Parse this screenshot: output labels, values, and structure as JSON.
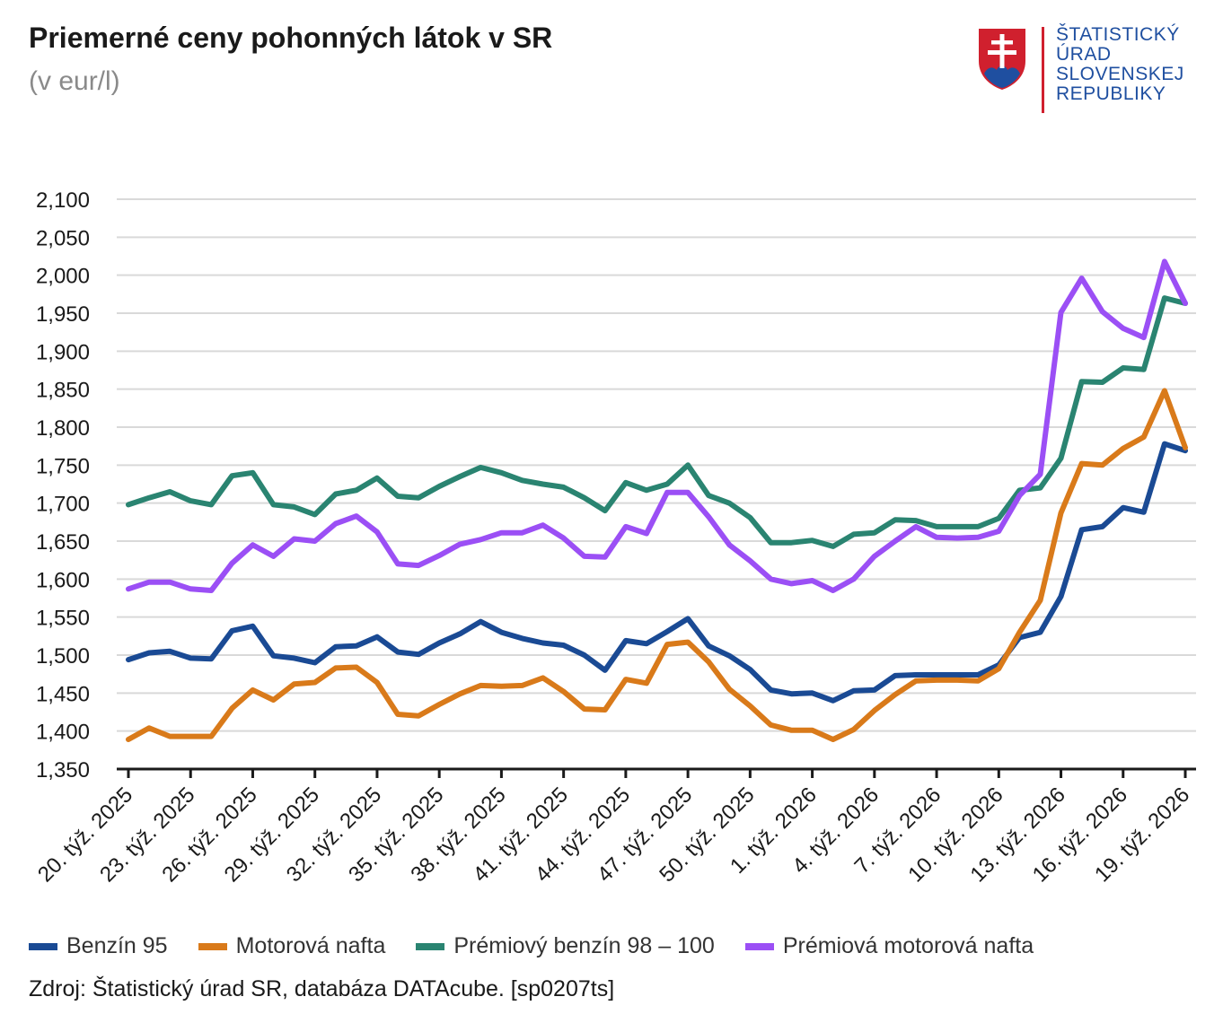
{
  "header": {
    "title": "Priemerné ceny pohonných látok v SR",
    "subtitle": "(v eur/l)"
  },
  "logo": {
    "text": "ŠTATISTICKÝ\nÚRAD\nSLOVENSKEJ\nREPUBLIKY",
    "icon": "slovak-coat-of-arms-icon"
  },
  "source": "Zdroj: Štatistický úrad SR, databáza DATAcube. [sp0207ts]",
  "chart_data": {
    "type": "line",
    "title": "Priemerné ceny pohonných látok v SR",
    "subtitle": "(v eur/l)",
    "xlabel": "",
    "ylabel": "",
    "ylim": [
      1.35,
      2.1
    ],
    "ytick_step": 0.05,
    "yticks": [
      "1,350",
      "1,400",
      "1,450",
      "1,500",
      "1,550",
      "1,600",
      "1,650",
      "1,700",
      "1,750",
      "1,800",
      "1,850",
      "1,900",
      "1,950",
      "2,000",
      "2,050",
      "2,100"
    ],
    "grid": true,
    "legend_position": "bottom",
    "categories": [
      "20. týž. 2025",
      "21. týž. 2025",
      "22. týž. 2025",
      "23. týž. 2025",
      "24. týž. 2025",
      "25. týž. 2025",
      "26. týž. 2025",
      "27. týž. 2025",
      "28. týž. 2025",
      "29. týž. 2025",
      "30. týž. 2025",
      "31. týž. 2025",
      "32. týž. 2025",
      "33. týž. 2025",
      "34. týž. 2025",
      "35. týž. 2025",
      "36. týž. 2025",
      "37. týž. 2025",
      "38. týž. 2025",
      "39. týž. 2025",
      "40. týž. 2025",
      "41. týž. 2025",
      "42. týž. 2025",
      "43. týž. 2025",
      "44. týž. 2025",
      "45. týž. 2025",
      "46. týž. 2025",
      "47. týž. 2025",
      "48. týž. 2025",
      "49. týž. 2025",
      "50. týž. 2025",
      "51. týž. 2025",
      "52. týž. 2025",
      "1. týž. 2026",
      "2. týž. 2026",
      "3. týž. 2026",
      "4. týž. 2026",
      "5. týž. 2026",
      "6. týž. 2026",
      "7. týž. 2026",
      "8. týž. 2026",
      "9. týž. 2026",
      "10. týž. 2026",
      "11. týž. 2026",
      "12. týž. 2026",
      "13. týž. 2026",
      "14. týž. 2026",
      "15. týž. 2026",
      "16. týž. 2026",
      "17. týž. 2026",
      "18. týž. 2026",
      "19. týž. 2026"
    ],
    "tick_labels": [
      "20. týž. 2025",
      "23. týž. 2025",
      "26. týž. 2025",
      "29. týž. 2025",
      "32. týž. 2025",
      "35. týž. 2025",
      "38. týž. 2025",
      "41. týž. 2025",
      "44. týž. 2025",
      "47. týž. 2025",
      "50. týž. 2025",
      "1. týž. 2026",
      "4. týž. 2026",
      "7. týž. 2026",
      "10. týž. 2026",
      "13. týž. 2026",
      "16. týž. 2026",
      "19. týž. 2026"
    ],
    "series": [
      {
        "name": "Benzín 95",
        "color": "#1a4a94",
        "values": [
          1.494,
          1.503,
          1.505,
          1.496,
          1.495,
          1.532,
          1.538,
          1.499,
          1.496,
          1.49,
          1.511,
          1.512,
          1.524,
          1.504,
          1.501,
          1.516,
          1.528,
          1.544,
          1.53,
          1.522,
          1.516,
          1.513,
          1.5,
          1.48,
          1.519,
          1.515,
          1.531,
          1.548,
          1.512,
          1.499,
          1.481,
          1.454,
          1.449,
          1.45,
          1.44,
          1.453,
          1.454,
          1.473,
          1.474,
          1.474,
          1.474,
          1.474,
          1.487,
          1.523,
          1.53,
          1.577,
          1.665,
          1.669,
          1.694,
          1.688,
          1.778,
          1.769
        ]
      },
      {
        "name": "Motorová nafta",
        "color": "#d97a1a",
        "values": [
          1.389,
          1.404,
          1.393,
          1.393,
          1.393,
          1.43,
          1.454,
          1.441,
          1.462,
          1.464,
          1.483,
          1.484,
          1.464,
          1.422,
          1.42,
          1.435,
          1.449,
          1.46,
          1.459,
          1.46,
          1.47,
          1.452,
          1.429,
          1.428,
          1.468,
          1.463,
          1.514,
          1.517,
          1.491,
          1.455,
          1.433,
          1.408,
          1.401,
          1.401,
          1.389,
          1.402,
          1.427,
          1.448,
          1.466,
          1.467,
          1.467,
          1.466,
          1.482,
          1.53,
          1.572,
          1.687,
          1.752,
          1.75,
          1.772,
          1.787,
          1.848,
          1.773
        ]
      },
      {
        "name": "Prémiový benzín 98 – 100",
        "color": "#2a8471",
        "values": [
          1.698,
          1.707,
          1.715,
          1.703,
          1.698,
          1.736,
          1.74,
          1.698,
          1.695,
          1.685,
          1.712,
          1.717,
          1.733,
          1.709,
          1.707,
          1.722,
          1.735,
          1.747,
          1.74,
          1.73,
          1.725,
          1.721,
          1.707,
          1.69,
          1.727,
          1.717,
          1.725,
          1.75,
          1.71,
          1.7,
          1.681,
          1.648,
          1.648,
          1.651,
          1.643,
          1.659,
          1.661,
          1.678,
          1.677,
          1.669,
          1.669,
          1.669,
          1.68,
          1.717,
          1.72,
          1.759,
          1.86,
          1.859,
          1.878,
          1.876,
          1.97,
          1.963
        ]
      },
      {
        "name": "Prémiová motorová nafta",
        "color": "#9b4ff5",
        "values": [
          1.587,
          1.596,
          1.596,
          1.587,
          1.585,
          1.621,
          1.645,
          1.63,
          1.653,
          1.65,
          1.673,
          1.683,
          1.662,
          1.62,
          1.618,
          1.631,
          1.646,
          1.652,
          1.661,
          1.661,
          1.671,
          1.654,
          1.63,
          1.629,
          1.669,
          1.66,
          1.714,
          1.714,
          1.682,
          1.645,
          1.624,
          1.6,
          1.594,
          1.598,
          1.585,
          1.6,
          1.63,
          1.65,
          1.669,
          1.655,
          1.654,
          1.655,
          1.663,
          1.71,
          1.738,
          1.951,
          1.996,
          1.952,
          1.93,
          1.918,
          2.018,
          1.963
        ]
      }
    ]
  }
}
